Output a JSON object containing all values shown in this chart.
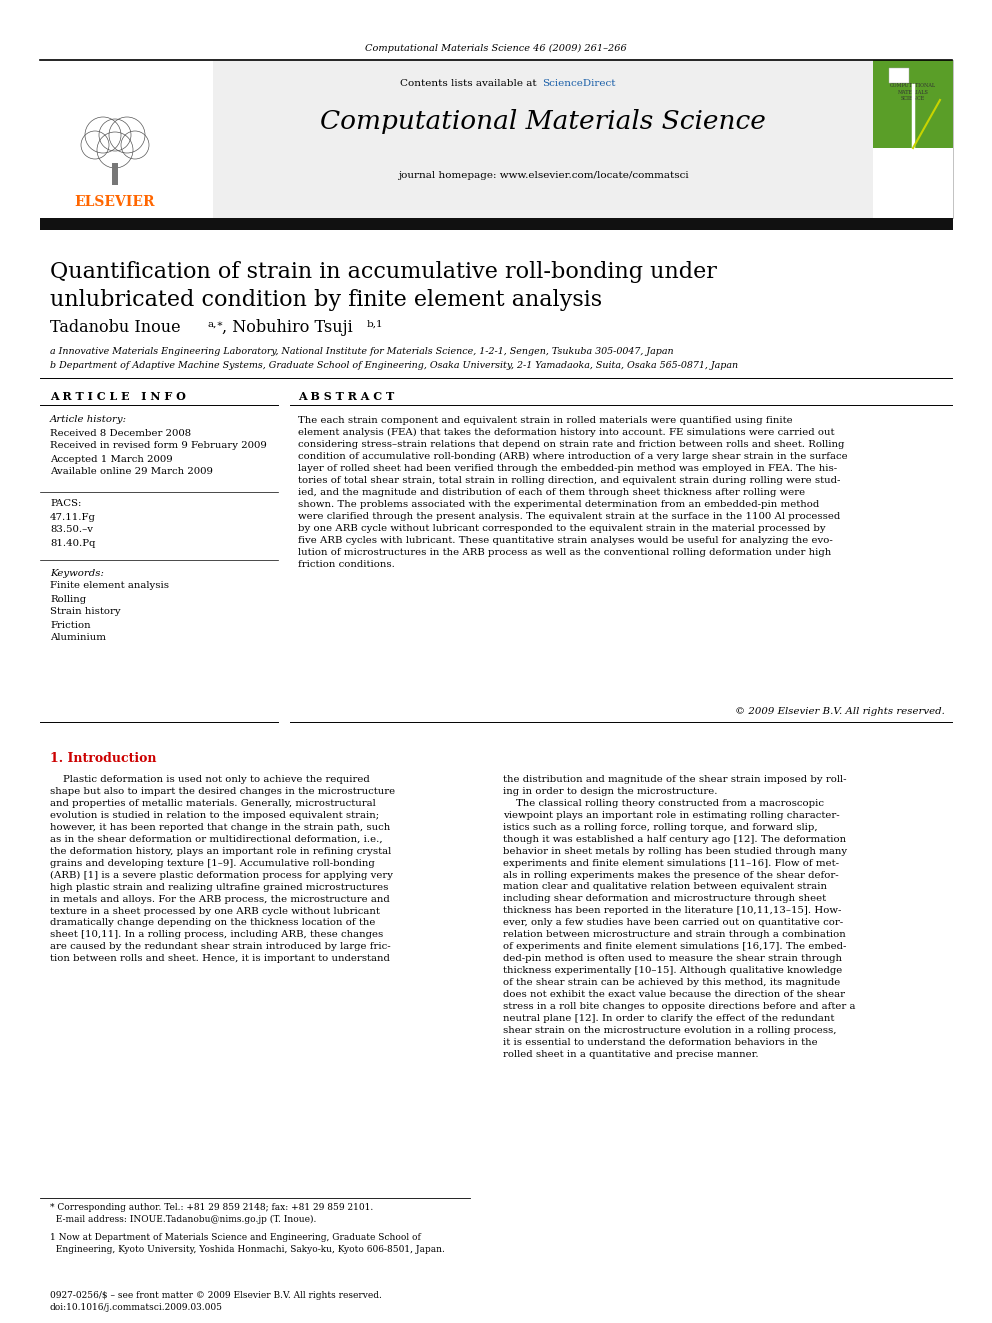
{
  "journal_ref": "Computational Materials Science 46 (2009) 261–266",
  "science_direct_text": "ScienceDirect",
  "journal_name": "Computational Materials Science",
  "journal_homepage": "journal homepage: www.elsevier.com/locate/commatsci",
  "title_line1": "Quantification of strain in accumulative roll-bonding under",
  "title_line2": "unlubricated condition by finite element analysis",
  "affil_a": "a Innovative Materials Engineering Laboratory, National Institute for Materials Science, 1-2-1, Sengen, Tsukuba 305-0047, Japan",
  "affil_b": "b Department of Adaptive Machine Systems, Graduate School of Engineering, Osaka University, 2-1 Yamadaoka, Suita, Osaka 565-0871, Japan",
  "article_info_header": "A R T I C L E   I N F O",
  "abstract_header": "A B S T R A C T",
  "article_history_header": "Article history:",
  "received1": "Received 8 December 2008",
  "received2": "Received in revised form 9 February 2009",
  "accepted": "Accepted 1 March 2009",
  "available": "Available online 29 March 2009",
  "pacs_header": "PACS:",
  "pacs_codes": [
    "47.11.Fg",
    "83.50.–v",
    "81.40.Pq"
  ],
  "keywords_header": "Keywords:",
  "keywords": [
    "Finite element analysis",
    "Rolling",
    "Strain history",
    "Friction",
    "Aluminium"
  ],
  "abstract_text": "The each strain component and equivalent strain in rolled materials were quantified using finite\nelement analysis (FEA) that takes the deformation history into account. FE simulations were carried out\nconsidering stress–strain relations that depend on strain rate and friction between rolls and sheet. Rolling\ncondition of accumulative roll-bonding (ARB) where introduction of a very large shear strain in the surface\nlayer of rolled sheet had been verified through the embedded-pin method was employed in FEA. The his-\ntories of total shear strain, total strain in rolling direction, and equivalent strain during rolling were stud-\nied, and the magnitude and distribution of each of them through sheet thickness after rolling were\nshown. The problems associated with the experimental determination from an embedded-pin method\nwere clarified through the present analysis. The equivalent strain at the surface in the 1100 Al processed\nby one ARB cycle without lubricant corresponded to the equivalent strain in the material processed by\nfive ARB cycles with lubricant. These quantitative strain analyses would be useful for analyzing the evo-\nlution of microstructures in the ARB process as well as the conventional rolling deformation under high\nfriction conditions.",
  "copyright": "© 2009 Elsevier B.V. All rights reserved.",
  "intro_header": "1. Introduction",
  "intro_left": "    Plastic deformation is used not only to achieve the required\nshape but also to impart the desired changes in the microstructure\nand properties of metallic materials. Generally, microstructural\nevolution is studied in relation to the imposed equivalent strain;\nhowever, it has been reported that change in the strain path, such\nas in the shear deformation or multidirectional deformation, i.e.,\nthe deformation history, plays an important role in refining crystal\ngrains and developing texture [1–9]. Accumulative roll-bonding\n(ARB) [1] is a severe plastic deformation process for applying very\nhigh plastic strain and realizing ultrafine grained microstructures\nin metals and alloys. For the ARB process, the microstructure and\ntexture in a sheet processed by one ARB cycle without lubricant\ndramatically change depending on the thickness location of the\nsheet [10,11]. In a rolling process, including ARB, these changes\nare caused by the redundant shear strain introduced by large fric-\ntion between rolls and sheet. Hence, it is important to understand",
  "intro_right": "the distribution and magnitude of the shear strain imposed by roll-\ning in order to design the microstructure.\n    The classical rolling theory constructed from a macroscopic\nviewpoint plays an important role in estimating rolling character-\nistics such as a rolling force, rolling torque, and forward slip,\nthough it was established a half century ago [12]. The deformation\nbehavior in sheet metals by rolling has been studied through many\nexperiments and finite element simulations [11–16]. Flow of met-\nals in rolling experiments makes the presence of the shear defor-\nmation clear and qualitative relation between equivalent strain\nincluding shear deformation and microstructure through sheet\nthickness has been reported in the literature [10,11,13–15]. How-\never, only a few studies have been carried out on quantitative cor-\nrelation between microstructure and strain through a combination\nof experiments and finite element simulations [16,17]. The embed-\nded-pin method is often used to measure the shear strain through\nthickness experimentally [10–15]. Although qualitative knowledge\nof the shear strain can be achieved by this method, its magnitude\ndoes not exhibit the exact value because the direction of the shear\nstress in a roll bite changes to opposite directions before and after a\nneutral plane [12]. In order to clarify the effect of the redundant\nshear strain on the microstructure evolution in a rolling process,\nit is essential to understand the deformation behaviors in the\nrolled sheet in a quantitative and precise manner.",
  "footnote_star": "* Corresponding author. Tel.: +81 29 859 2148; fax: +81 29 859 2101.",
  "footnote_email": "  E-mail address: INOUE.Tadanobu@nims.go.jp (T. Inoue).",
  "footnote_1": "1 Now at Department of Materials Science and Engineering, Graduate School of\n  Engineering, Kyoto University, Yoshida Honmachi, Sakyo-ku, Kyoto 606-8501, Japan.",
  "issn_line": "0927-0256/$ – see front matter © 2009 Elsevier B.V. All rights reserved.",
  "doi_line": "doi:10.1016/j.commatsci.2009.03.005",
  "orange_color": "#FF6600",
  "link_blue": "#1a5fa8",
  "header_gray": "#efefef",
  "dark_bar": "#111111",
  "intro_red": "#cc0000"
}
